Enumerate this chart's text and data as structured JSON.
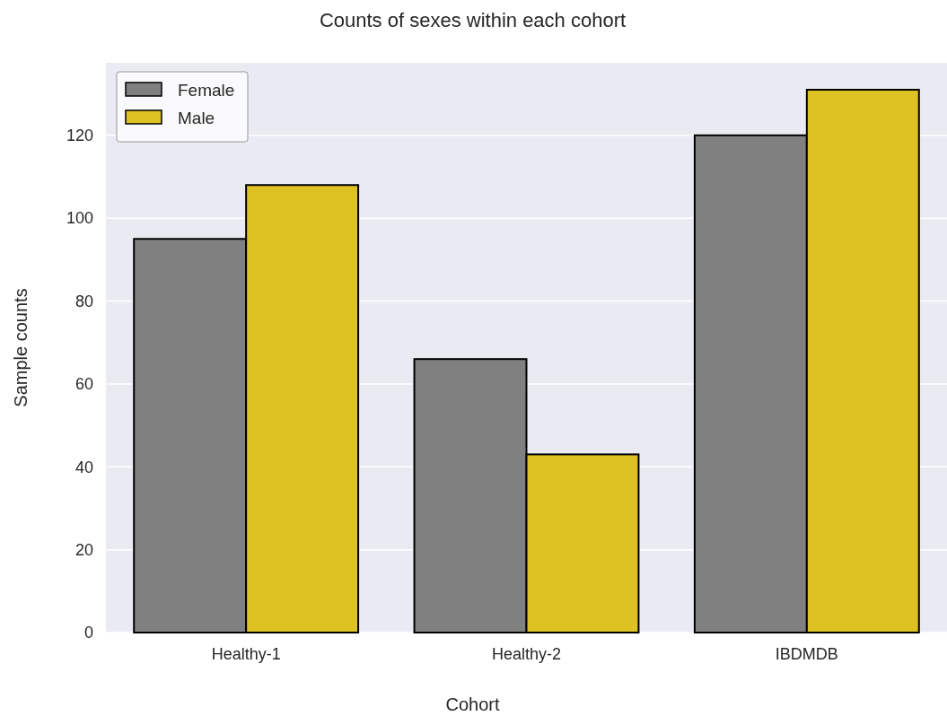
{
  "chart_data": {
    "type": "bar",
    "title": "Counts of sexes within each cohort",
    "xlabel": "Cohort",
    "ylabel": "Sample counts",
    "categories": [
      "Healthy-1",
      "Healthy-2",
      "IBDMDB"
    ],
    "series": [
      {
        "name": "Female",
        "color": "#808080",
        "values": [
          95,
          66,
          120
        ]
      },
      {
        "name": "Male",
        "color": "#dec123",
        "values": [
          108,
          43,
          131
        ]
      }
    ],
    "ylim": [
      0,
      137.5
    ],
    "yticks": [
      0,
      20,
      40,
      60,
      80,
      100,
      120
    ],
    "grid": "y",
    "legend": "top left"
  }
}
